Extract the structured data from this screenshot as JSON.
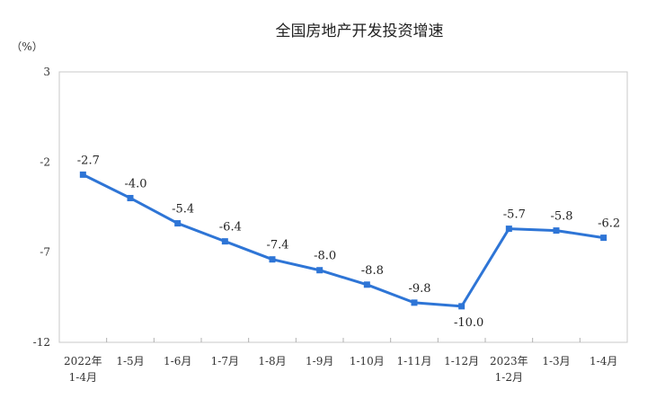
{
  "chart_data": {
    "type": "line",
    "title": "全国房地产开发投资增速",
    "unit_label": "（%）",
    "ylim": [
      -12,
      3
    ],
    "yticks": [
      3,
      -2,
      -7,
      -12
    ],
    "grid": false,
    "categories": [
      [
        "2022年",
        "1-4月"
      ],
      [
        "1-5月"
      ],
      [
        "1-6月"
      ],
      [
        "1-7月"
      ],
      [
        "1-8月"
      ],
      [
        "1-9月"
      ],
      [
        "1-10月"
      ],
      [
        "1-11月"
      ],
      [
        "1-12月"
      ],
      [
        "2023年",
        "1-2月"
      ],
      [
        "1-3月"
      ],
      [
        "1-4月"
      ]
    ],
    "series": [
      {
        "values": [
          -2.7,
          -4.0,
          -5.4,
          -6.4,
          -7.4,
          -8.0,
          -8.8,
          -9.8,
          -10.0,
          -5.7,
          -5.8,
          -6.2
        ],
        "labels": [
          "-2.7",
          "-4.0",
          "-5.4",
          "-6.4",
          "-7.4",
          "-8.0",
          "-8.8",
          "-9.8",
          "-10.0",
          "-5.7",
          "-5.8",
          "-6.2"
        ],
        "color": "#2e75d6"
      }
    ]
  }
}
